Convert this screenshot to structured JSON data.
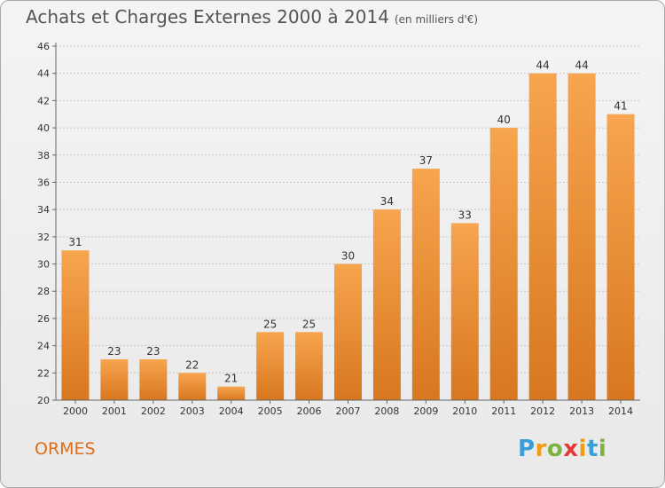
{
  "header": {
    "title": "Achats et Charges Externes 2000 à 2014",
    "subtitle": "(en milliers d'€)"
  },
  "footer": {
    "commune": "ORMES",
    "logo_letters": [
      "P",
      "r",
      "o",
      "x",
      "i",
      "t",
      "i"
    ],
    "logo_colors": [
      "#3a9fd8",
      "#f39c12",
      "#7cb342",
      "#e53935",
      "#f39c12",
      "#3a9fd8",
      "#7cb342"
    ]
  },
  "colors": {
    "bar_top": "#f7a54e",
    "bar_bottom": "#d8771f",
    "grid": "#c8c8c8",
    "axis": "#666666",
    "title": "#555555",
    "commune": "#e06d1a"
  },
  "chart_data": {
    "type": "bar",
    "title": "Achats et Charges Externes 2000 à 2014",
    "subtitle": "(en milliers d'€)",
    "categories": [
      "2000",
      "2001",
      "2002",
      "2003",
      "2004",
      "2005",
      "2006",
      "2007",
      "2008",
      "2009",
      "2010",
      "2011",
      "2012",
      "2013",
      "2014"
    ],
    "values": [
      31,
      23,
      23,
      22,
      21,
      25,
      25,
      30,
      34,
      37,
      33,
      40,
      44,
      44,
      41
    ],
    "ylim": [
      20,
      46
    ],
    "yticks": [
      20,
      22,
      24,
      26,
      28,
      30,
      32,
      34,
      36,
      38,
      40,
      42,
      44,
      46
    ],
    "grid": true,
    "xlabel": "",
    "ylabel": ""
  }
}
